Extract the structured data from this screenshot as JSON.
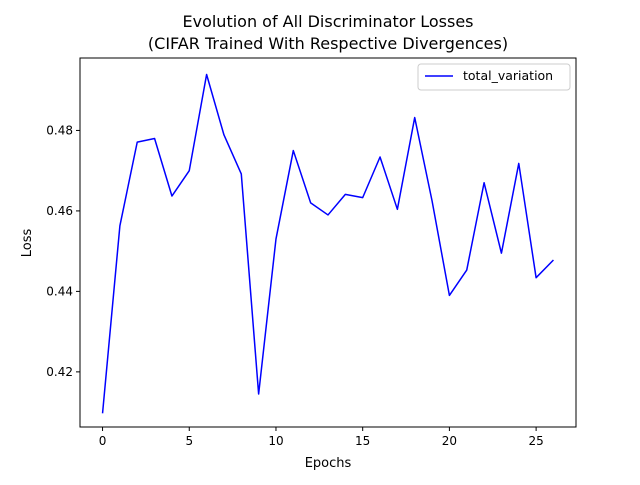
{
  "chart_data": {
    "type": "line",
    "title": "Evolution of All Discriminator Losses",
    "subtitle": "(CIFAR Trained With Respective Divergences)",
    "xlabel": "Epochs",
    "ylabel": "Loss",
    "xlim": [
      -1.3,
      27.3
    ],
    "ylim": [
      0.4063,
      0.498
    ],
    "xticks": [
      0,
      5,
      10,
      15,
      20,
      25
    ],
    "yticks": [
      0.42,
      0.44,
      0.46,
      0.48
    ],
    "ytick_labels": [
      "0.42",
      "0.44",
      "0.46",
      "0.48"
    ],
    "grid": false,
    "legend_position": "top-right",
    "series": [
      {
        "name": "total_variation",
        "color": "#0000ff",
        "x": [
          0,
          1,
          2,
          3,
          4,
          5,
          6,
          7,
          8,
          9,
          10,
          11,
          12,
          13,
          14,
          15,
          16,
          17,
          18,
          19,
          20,
          21,
          22,
          23,
          24,
          25,
          26
        ],
        "values": [
          0.4097,
          0.4563,
          0.4771,
          0.478,
          0.4637,
          0.47,
          0.4939,
          0.4789,
          0.4692,
          0.4145,
          0.453,
          0.475,
          0.462,
          0.459,
          0.4641,
          0.4633,
          0.4734,
          0.4604,
          0.4832,
          0.4625,
          0.439,
          0.4453,
          0.467,
          0.4495,
          0.4718,
          0.4434,
          0.4478
        ]
      }
    ]
  }
}
